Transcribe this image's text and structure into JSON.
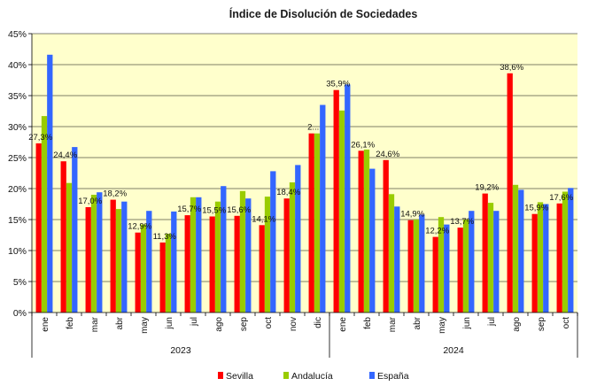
{
  "chart_data": {
    "type": "bar",
    "title": "Índice de Disolución de Sociedades",
    "categories": [
      "ene",
      "feb",
      "mar",
      "abr",
      "may",
      "jun",
      "jul",
      "ago",
      "sep",
      "oct",
      "nov",
      "dic",
      "ene",
      "feb",
      "mar",
      "abr",
      "may",
      "jun",
      "jul",
      "ago",
      "sep",
      "oct"
    ],
    "groups": [
      {
        "label": "2023",
        "count": 12
      },
      {
        "label": "2024",
        "count": 10
      }
    ],
    "series": [
      {
        "name": "Sevilla",
        "color": "#ff0000",
        "values": [
          27.3,
          24.4,
          17.0,
          18.2,
          12.9,
          11.3,
          15.7,
          15.5,
          15.6,
          14.1,
          18.4,
          28.9,
          35.9,
          26.1,
          24.6,
          14.9,
          12.2,
          13.7,
          19.2,
          38.6,
          15.9,
          17.6
        ]
      },
      {
        "name": "Andalucía",
        "color": "#99cc00",
        "values": [
          31.7,
          20.9,
          19.0,
          16.7,
          14.2,
          12.7,
          18.6,
          17.9,
          19.6,
          18.7,
          21.0,
          28.9,
          32.6,
          26.3,
          19.1,
          15.0,
          15.4,
          15.0,
          17.7,
          20.6,
          17.8,
          19.5
        ]
      },
      {
        "name": "España",
        "color": "#3366ff",
        "values": [
          41.6,
          26.7,
          19.4,
          17.9,
          16.4,
          16.3,
          18.6,
          20.4,
          18.4,
          22.8,
          23.8,
          33.5,
          36.8,
          23.2,
          17.1,
          15.8,
          14.2,
          16.4,
          16.4,
          19.8,
          17.5,
          20.1
        ]
      }
    ],
    "data_labels": [
      "27,3%",
      "24,4%",
      "17,0%",
      "18,2%",
      "12,9%",
      "11,3%",
      "15,7%",
      "15,5%",
      "15,6%",
      "14,1%",
      "18,4%",
      "2...",
      "35,9%",
      "26,1%",
      "24,6%",
      "14,9%",
      "12,2%",
      "13,7%",
      "19,2%",
      "38,6%",
      "15,9%",
      "17,6%"
    ],
    "ylim": [
      0,
      45
    ],
    "yticks": [
      "0%",
      "5%",
      "10%",
      "15%",
      "20%",
      "25%",
      "30%",
      "35%",
      "40%",
      "45%"
    ],
    "plot_background": "#ffffcc",
    "grid": true,
    "legend": "bottom"
  }
}
